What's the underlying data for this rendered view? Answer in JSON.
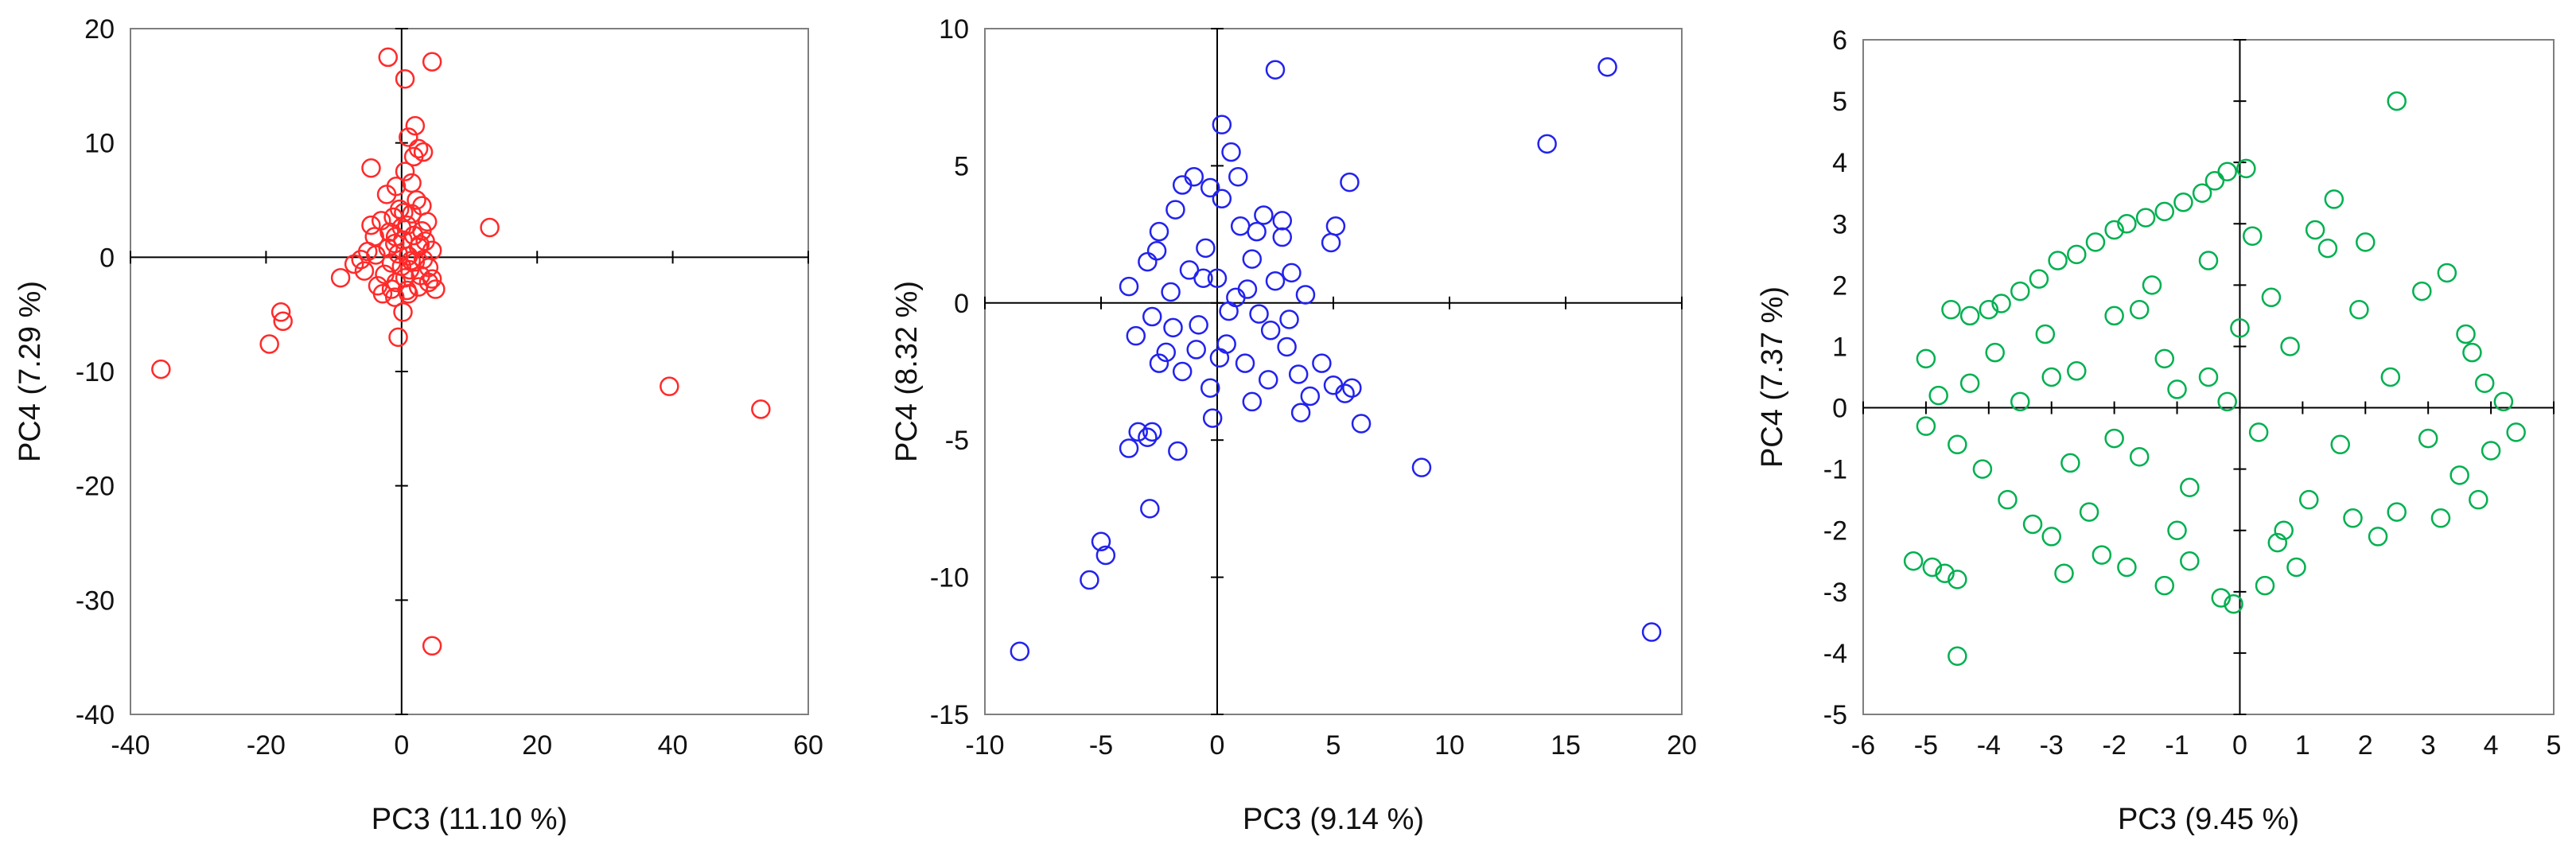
{
  "chart_data": [
    {
      "type": "scatter",
      "xlabel": "PC3 (11.10 %)",
      "ylabel": "PC4 (7.29 %)",
      "xlim": [
        -40,
        60
      ],
      "ylim": [
        -40,
        20
      ],
      "xticks": [
        -40,
        -20,
        0,
        20,
        40,
        60
      ],
      "yticks": [
        -40,
        -30,
        -20,
        -10,
        0,
        10,
        20
      ],
      "xtick_labels": [
        "-40",
        "-20",
        "0",
        "20",
        "40",
        "60"
      ],
      "ytick_labels": [
        "-40",
        "-30",
        "-20",
        "-10",
        "0",
        "10",
        "20"
      ],
      "grid": false,
      "color": "#ff2a2a",
      "marker": "open-circle",
      "series": [
        {
          "points": [
            [
              -35.5,
              -9.8
            ],
            [
              -19.5,
              -7.6
            ],
            [
              -17.5,
              -5.6
            ],
            [
              -17.8,
              -4.8
            ],
            [
              -9,
              -1.8
            ],
            [
              -7,
              -0.6
            ],
            [
              -5.5,
              -1.2
            ],
            [
              -5,
              0.5
            ],
            [
              -4.5,
              2.8
            ],
            [
              -4,
              1.8
            ],
            [
              -3.5,
              -2.5
            ],
            [
              -3,
              3.2
            ],
            [
              -2.5,
              -1.5
            ],
            [
              -2,
              0.8
            ],
            [
              -1.8,
              2.2
            ],
            [
              -1.5,
              -0.5
            ],
            [
              -1.2,
              3.5
            ],
            [
              -1,
              1.2
            ],
            [
              -0.8,
              -2.2
            ],
            [
              -0.5,
              0.3
            ],
            [
              -0.3,
              4.2
            ],
            [
              0,
              -0.8
            ],
            [
              0.2,
              1.5
            ],
            [
              0.5,
              -1.8
            ],
            [
              0.8,
              2.8
            ],
            [
              1,
              0.1
            ],
            [
              1.2,
              -1.1
            ],
            [
              1.5,
              3.8
            ],
            [
              1.8,
              1.9
            ],
            [
              2,
              -0.4
            ],
            [
              2.2,
              5
            ],
            [
              2.5,
              0.9
            ],
            [
              2.8,
              -1.6
            ],
            [
              3,
              2.3
            ],
            [
              3.2,
              -0.2
            ],
            [
              3.5,
              1.4
            ],
            [
              4,
              -0.9
            ],
            [
              4.5,
              -1.9
            ],
            [
              5,
              -2.8
            ],
            [
              -0.8,
              6.2
            ],
            [
              0.5,
              7.5
            ],
            [
              1.8,
              8.8
            ],
            [
              2.5,
              9.5
            ],
            [
              3.2,
              9.2
            ],
            [
              -4.5,
              7.8
            ],
            [
              1,
              10.5
            ],
            [
              2,
              11.5
            ],
            [
              0.5,
              15.6
            ],
            [
              -2,
              17.5
            ],
            [
              4.5,
              17.1
            ],
            [
              13,
              2.6
            ],
            [
              0.2,
              -4.8
            ],
            [
              -0.5,
              -7
            ],
            [
              1,
              -3.2
            ],
            [
              -2.8,
              -3.2
            ],
            [
              -1,
              -3.5
            ],
            [
              2.5,
              -2.6
            ],
            [
              4,
              -2.2
            ],
            [
              3,
              4.5
            ],
            [
              -3.8,
              0.2
            ],
            [
              -2.2,
              5.5
            ],
            [
              1.5,
              6.5
            ],
            [
              -6,
              -0.2
            ],
            [
              4.5,
              0.6
            ],
            [
              3.8,
              3.1
            ],
            [
              -1.5,
              -2.8
            ],
            [
              0,
              2.6
            ],
            [
              0.8,
              -2.9
            ],
            [
              2.7,
              1.1
            ],
            [
              1.4,
              -0.3
            ],
            [
              -0.9,
              1.8
            ],
            [
              0.3,
              3.9
            ],
            [
              39.5,
              -11.3
            ],
            [
              53,
              -13.3
            ],
            [
              4.5,
              -34
            ]
          ]
        }
      ]
    },
    {
      "type": "scatter",
      "xlabel": "PC3 (9.14 %)",
      "ylabel": "PC4 (8.32 %)",
      "xlim": [
        -10,
        20
      ],
      "ylim": [
        -15,
        10
      ],
      "xticks": [
        -10,
        -5,
        0,
        5,
        10,
        15,
        20
      ],
      "yticks": [
        -15,
        -10,
        -5,
        0,
        5,
        10
      ],
      "xtick_labels": [
        "-10",
        "-5",
        "0",
        "5",
        "10",
        "15",
        "20"
      ],
      "ytick_labels": [
        "-15",
        "-10",
        "-5",
        "0",
        "5",
        "10"
      ],
      "grid": false,
      "color": "#2222ee",
      "marker": "open-circle",
      "series": [
        {
          "points": [
            [
              -3.8,
              0.6
            ],
            [
              -3.5,
              -1.2
            ],
            [
              -3,
              1.5
            ],
            [
              -2.8,
              -0.5
            ],
            [
              -2.5,
              2.6
            ],
            [
              -2.2,
              -1.8
            ],
            [
              -2,
              0.4
            ],
            [
              -1.8,
              3.4
            ],
            [
              -1.5,
              -2.5
            ],
            [
              -1.2,
              1.2
            ],
            [
              -1,
              4.6
            ],
            [
              -0.8,
              -0.8
            ],
            [
              -0.5,
              2
            ],
            [
              -0.3,
              -3.1
            ],
            [
              0,
              0.9
            ],
            [
              0.2,
              3.8
            ],
            [
              0.4,
              -1.5
            ],
            [
              0.6,
              5.5
            ],
            [
              0.8,
              0.2
            ],
            [
              1,
              2.8
            ],
            [
              1.2,
              -2.2
            ],
            [
              1.5,
              1.6
            ],
            [
              1.8,
              -0.4
            ],
            [
              2,
              3.2
            ],
            [
              2.2,
              -2.8
            ],
            [
              2.5,
              0.8
            ],
            [
              2.8,
              2.4
            ],
            [
              3,
              -1.6
            ],
            [
              3.2,
              1.1
            ],
            [
              3.5,
              -2.6
            ],
            [
              3.8,
              0.3
            ],
            [
              4,
              -3.4
            ],
            [
              4.5,
              -2.2
            ],
            [
              5,
              -3
            ],
            [
              5.5,
              -3.3
            ],
            [
              5.8,
              -3.1
            ],
            [
              4.9,
              2.2
            ],
            [
              5.1,
              2.8
            ],
            [
              5.7,
              4.4
            ],
            [
              2.5,
              8.5
            ],
            [
              0.2,
              6.5
            ],
            [
              -0.3,
              4.2
            ],
            [
              -1.5,
              4.3
            ],
            [
              0.9,
              4.6
            ],
            [
              2.8,
              3
            ],
            [
              -3.4,
              -4.7
            ],
            [
              -3.8,
              -5.3
            ],
            [
              -2.8,
              -4.7
            ],
            [
              -3,
              -4.9
            ],
            [
              -1.7,
              -5.4
            ],
            [
              -2.5,
              -2.2
            ],
            [
              -0.2,
              -4.2
            ],
            [
              1.5,
              -3.6
            ],
            [
              3.6,
              -4
            ],
            [
              6.2,
              -4.4
            ],
            [
              8.8,
              -6
            ],
            [
              -2.9,
              -7.5
            ],
            [
              -5,
              -8.7
            ],
            [
              -4.8,
              -9.2
            ],
            [
              -5.5,
              -10.1
            ],
            [
              -8.5,
              -12.7
            ],
            [
              14.2,
              5.8
            ],
            [
              16.8,
              8.6
            ],
            [
              18.7,
              -12
            ],
            [
              0.5,
              -0.3
            ],
            [
              -0.6,
              0.9
            ],
            [
              1.3,
              0.5
            ],
            [
              -1.9,
              -0.9
            ],
            [
              0.1,
              -2
            ],
            [
              2.3,
              -1
            ],
            [
              -2.6,
              1.9
            ],
            [
              1.7,
              2.6
            ],
            [
              -0.9,
              -1.7
            ],
            [
              3.1,
              -0.6
            ]
          ]
        }
      ]
    },
    {
      "type": "scatter",
      "xlabel": "PC3 (9.45 %)",
      "ylabel": "PC4 (7.37 %)",
      "xlim": [
        -6,
        5
      ],
      "ylim": [
        -5,
        6
      ],
      "xticks": [
        -6,
        -5,
        -4,
        -3,
        -2,
        -1,
        0,
        1,
        2,
        3,
        4,
        5
      ],
      "yticks": [
        -5,
        -4,
        -3,
        -2,
        -1,
        0,
        1,
        2,
        3,
        4,
        5,
        6
      ],
      "xtick_labels": [
        "-6",
        "-5",
        "-4",
        "-3",
        "-2",
        "-1",
        "0",
        "1",
        "2",
        "3",
        "4",
        "5"
      ],
      "ytick_labels": [
        "-5",
        "-4",
        "-3",
        "-2",
        "-1",
        "0",
        "1",
        "2",
        "3",
        "4",
        "5",
        "6"
      ],
      "grid": false,
      "color": "#00b050",
      "marker": "open-circle",
      "series": [
        {
          "points": [
            [
              -5.2,
              -2.5
            ],
            [
              -4.9,
              -2.6
            ],
            [
              -4.7,
              -2.7
            ],
            [
              -4.5,
              -2.8
            ],
            [
              -4.5,
              -4.05
            ],
            [
              -4.6,
              1.6
            ],
            [
              -4.3,
              1.5
            ],
            [
              -4,
              1.6
            ],
            [
              -3.8,
              1.7
            ],
            [
              -3.5,
              1.9
            ],
            [
              -3.2,
              2.1
            ],
            [
              -2.9,
              2.4
            ],
            [
              -2.6,
              2.5
            ],
            [
              -2.3,
              2.7
            ],
            [
              -2,
              2.9
            ],
            [
              -1.8,
              3
            ],
            [
              -1.5,
              3.1
            ],
            [
              -1.2,
              3.2
            ],
            [
              -0.9,
              3.35
            ],
            [
              -0.6,
              3.5
            ],
            [
              -0.4,
              3.7
            ],
            [
              -0.2,
              3.85
            ],
            [
              0.1,
              3.9
            ],
            [
              -5,
              0.8
            ],
            [
              -5,
              -0.3
            ],
            [
              -4.8,
              0.2
            ],
            [
              -4.5,
              -0.6
            ],
            [
              -4.3,
              0.4
            ],
            [
              -4.1,
              -1
            ],
            [
              -3.9,
              0.9
            ],
            [
              -3.7,
              -1.5
            ],
            [
              -3.5,
              0.1
            ],
            [
              -3.3,
              -1.9
            ],
            [
              -3.1,
              1.2
            ],
            [
              -3,
              -2.1
            ],
            [
              -2.8,
              -2.7
            ],
            [
              -2.6,
              0.6
            ],
            [
              -2.4,
              -1.7
            ],
            [
              -2.2,
              -2.4
            ],
            [
              -2,
              1.5
            ],
            [
              -1.8,
              -2.6
            ],
            [
              -1.6,
              -0.8
            ],
            [
              -1.4,
              2
            ],
            [
              -1.2,
              -2.9
            ],
            [
              -1,
              0.3
            ],
            [
              -0.8,
              -2.5
            ],
            [
              -0.5,
              2.4
            ],
            [
              -0.3,
              -3.1
            ],
            [
              -0.1,
              -3.2
            ],
            [
              0.2,
              2.8
            ],
            [
              0.4,
              -2.9
            ],
            [
              0.6,
              -2.2
            ],
            [
              0.9,
              -2.6
            ],
            [
              1.2,
              2.9
            ],
            [
              1.4,
              2.6
            ],
            [
              1.5,
              3.4
            ],
            [
              1.8,
              -1.8
            ],
            [
              2,
              2.7
            ],
            [
              2.2,
              -2.1
            ],
            [
              2.5,
              5
            ],
            [
              2.5,
              -1.7
            ],
            [
              2.9,
              1.9
            ],
            [
              3,
              -0.5
            ],
            [
              3.2,
              -1.8
            ],
            [
              3.3,
              2.2
            ],
            [
              3.5,
              -1.1
            ],
            [
              3.7,
              0.9
            ],
            [
              3.9,
              0.4
            ],
            [
              4,
              -0.7
            ],
            [
              4.2,
              0.1
            ],
            [
              4.4,
              -0.4
            ],
            [
              3.6,
              1.2
            ],
            [
              3.8,
              -1.5
            ],
            [
              -0.5,
              0.5
            ],
            [
              0.3,
              -0.4
            ],
            [
              -1.2,
              0.8
            ],
            [
              0.8,
              1
            ],
            [
              -2,
              -0.5
            ],
            [
              1.6,
              -0.6
            ],
            [
              -0.8,
              -1.3
            ],
            [
              0.5,
              1.8
            ],
            [
              -1.6,
              1.6
            ],
            [
              1.1,
              -1.5
            ],
            [
              -0.2,
              0.1
            ],
            [
              2.4,
              0.5
            ],
            [
              -2.7,
              -0.9
            ],
            [
              0,
              1.3
            ],
            [
              1.9,
              1.6
            ],
            [
              -1,
              -2
            ],
            [
              0.7,
              -2
            ],
            [
              -3,
              0.5
            ]
          ]
        }
      ]
    }
  ]
}
